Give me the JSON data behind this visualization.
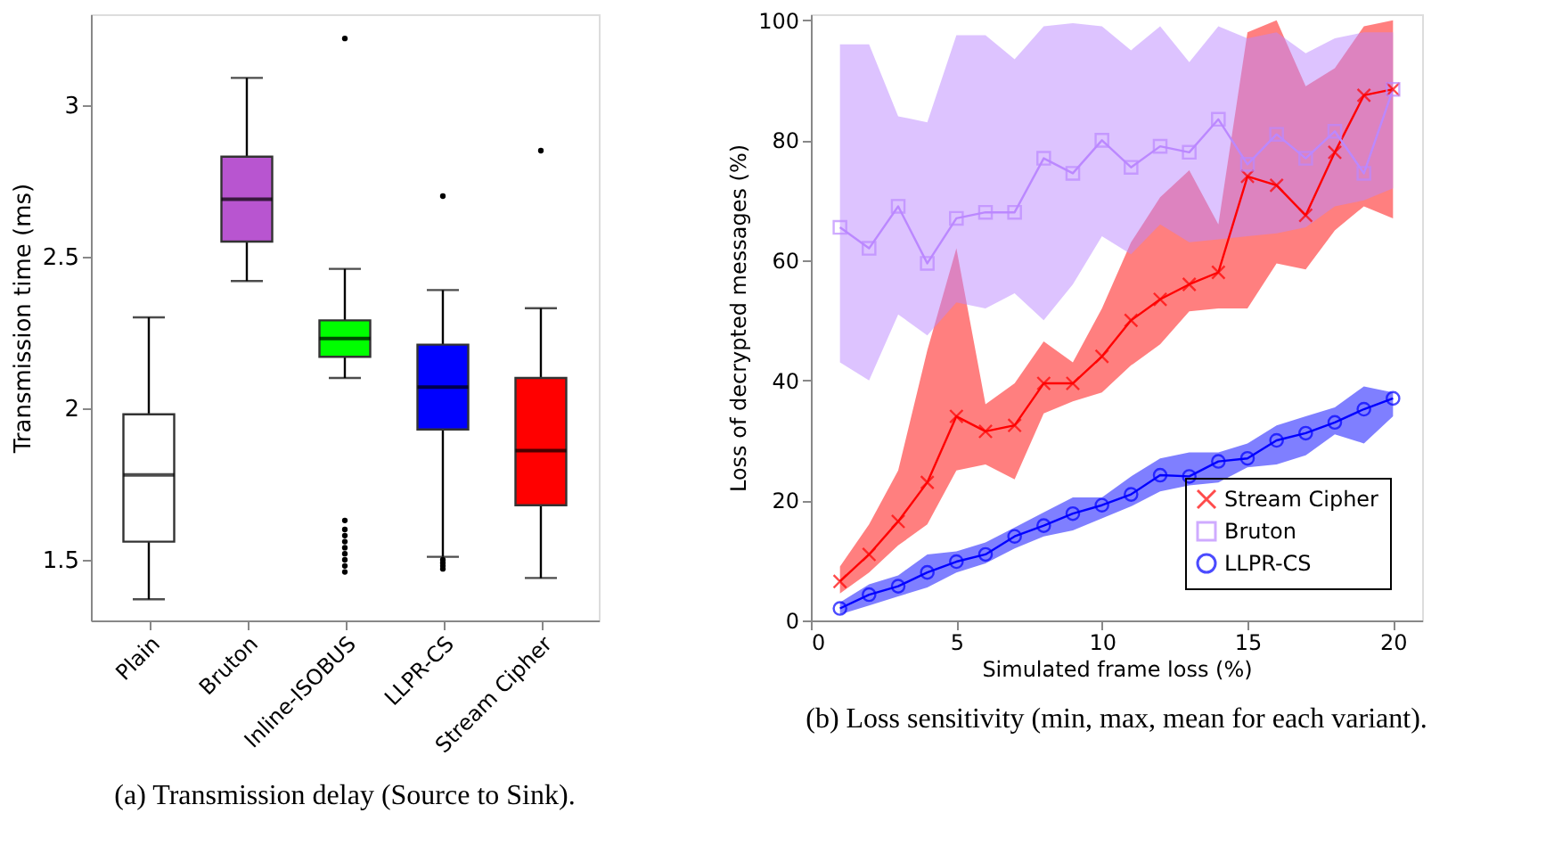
{
  "chart_data": [
    {
      "type": "box",
      "ylabel": "Transmission time (ms)",
      "categories": [
        "Plain",
        "Bruton",
        "Inline-ISOBUS",
        "LLPR-CS",
        "Stream Cipher"
      ],
      "colors": [
        "#ffffff",
        "#b855d0",
        "#00ff00",
        "#0000ff",
        "#ff0000"
      ],
      "ylim": [
        1.3,
        3.3
      ],
      "yticks": [
        1.5,
        2,
        2.5,
        3
      ],
      "grid": false,
      "boxes": [
        {
          "low": 1.37,
          "q1": 1.56,
          "median": 1.78,
          "q3": 1.98,
          "high": 2.3
        },
        {
          "low": 2.42,
          "q1": 2.55,
          "median": 2.69,
          "q3": 2.83,
          "high": 3.09
        },
        {
          "low": 2.1,
          "q1": 2.17,
          "median": 2.23,
          "q3": 2.29,
          "high": 2.46,
          "outliers": [
            3.22,
            1.46,
            1.48,
            1.5,
            1.52,
            1.54,
            1.56,
            1.58,
            1.6,
            1.63
          ]
        },
        {
          "low": 1.51,
          "q1": 1.93,
          "median": 2.07,
          "q3": 2.21,
          "high": 2.39,
          "outliers": [
            2.7,
            1.47,
            1.48,
            1.49,
            1.5
          ]
        },
        {
          "low": 1.44,
          "q1": 1.68,
          "median": 1.86,
          "q3": 2.1,
          "high": 2.33,
          "outliers": [
            2.85
          ]
        }
      ],
      "annotations": [
        "(a)  Transmission delay (Source to Sink)."
      ]
    },
    {
      "type": "line",
      "xlabel": "Simulated frame loss (%)",
      "ylabel": "Loss of decrypted messages (%)",
      "x": [
        1,
        2,
        3,
        4,
        5,
        6,
        7,
        8,
        9,
        10,
        11,
        12,
        13,
        14,
        15,
        16,
        17,
        18,
        19,
        20
      ],
      "xlim": [
        0,
        21
      ],
      "xticks": [
        0,
        5,
        10,
        15,
        20
      ],
      "ylim": [
        0,
        101
      ],
      "yticks": [
        0,
        20,
        40,
        60,
        80,
        100
      ],
      "grid": false,
      "legend": "bottom right",
      "line_style": "solid",
      "series": [
        {
          "name": "Stream Cipher",
          "color": "#ff0000",
          "marker": "cross",
          "values": [
            6.5,
            11,
            16.5,
            23,
            34,
            31.5,
            32.5,
            39.5,
            39.5,
            44,
            50,
            53.5,
            56,
            58,
            74,
            72.5,
            67.5,
            78,
            87.5,
            88.5
          ],
          "lower": [
            4.5,
            8,
            12.5,
            16,
            25,
            26,
            23.5,
            34.5,
            36.5,
            38,
            42.5,
            46,
            51.5,
            52,
            52,
            59.5,
            58.5,
            65,
            69,
            67
          ],
          "upper": [
            9,
            16,
            25,
            45,
            62,
            36,
            39.5,
            46.5,
            43,
            52,
            63,
            70.5,
            75,
            66,
            98,
            100,
            89,
            92,
            99,
            100
          ]
        },
        {
          "name": "Bruton",
          "color": "#bb88ff",
          "marker": "square",
          "values": [
            65.5,
            62,
            69,
            59.5,
            67,
            68,
            68,
            77,
            74.5,
            80,
            75.5,
            79,
            78,
            83.5,
            76,
            81,
            77,
            81.5,
            74.5,
            88.5
          ],
          "lower": [
            43,
            40,
            51,
            47.5,
            53,
            52,
            54.5,
            50,
            56,
            64,
            61,
            66,
            63,
            63.5,
            64,
            64.5,
            65.5,
            69,
            70,
            72
          ],
          "upper": [
            96,
            96,
            84,
            83,
            97.5,
            97.5,
            93.5,
            99,
            99.5,
            99,
            95,
            99,
            93,
            99,
            97,
            98,
            94.5,
            97,
            98,
            98
          ]
        },
        {
          "name": "LLPR-CS",
          "color": "#0000ff",
          "marker": "circle",
          "values": [
            2,
            4.3,
            5.7,
            8,
            9.8,
            11,
            14,
            15.8,
            17.8,
            19.2,
            21,
            24.2,
            24,
            26.5,
            27,
            30,
            31.2,
            33,
            35.2,
            37
          ],
          "lower": [
            1,
            2.5,
            4,
            5.5,
            8,
            9.5,
            12,
            14,
            15,
            17,
            19,
            21.5,
            22.5,
            23,
            25.5,
            26,
            27.5,
            31,
            29.5,
            34
          ],
          "upper": [
            3,
            6,
            7.5,
            11,
            11.5,
            13,
            15.5,
            18,
            20.5,
            20.5,
            24,
            27,
            28,
            28,
            29.5,
            32.5,
            34,
            35.5,
            39,
            38
          ]
        }
      ],
      "annotations": [
        "(b)  Loss sensitivity (min, max, mean for each variant)."
      ]
    }
  ]
}
